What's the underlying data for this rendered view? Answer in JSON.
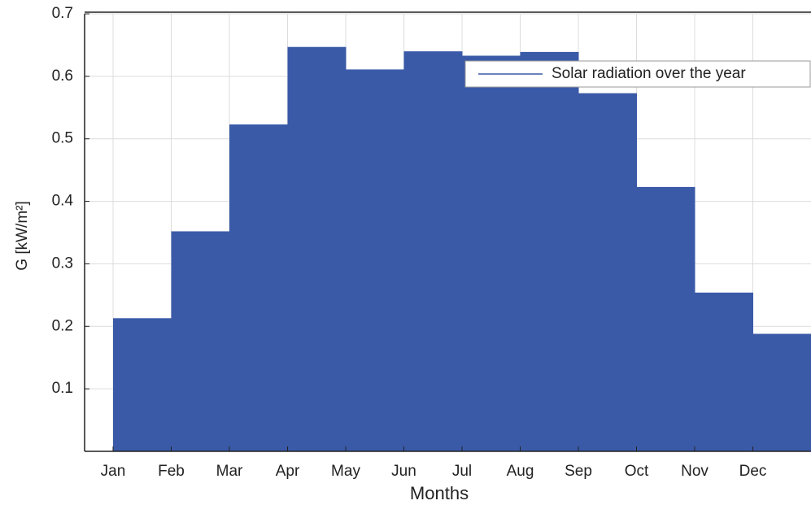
{
  "chart_data": {
    "type": "stairs",
    "y_label": "G [kW/m²]",
    "x_label": "Months",
    "categories": [
      "Jan",
      "Feb",
      "Mar",
      "Apr",
      "May",
      "Jun",
      "Jul",
      "Aug",
      "Sep",
      "Oct",
      "Nov",
      "Dec"
    ],
    "series": [
      {
        "name": "Solar radiation over the year",
        "color": "#3a5aa8",
        "values": [
          0.213,
          0.352,
          0.523,
          0.647,
          0.611,
          0.64,
          0.633,
          0.639,
          0.573,
          0.423,
          0.254,
          0.188
        ]
      }
    ],
    "ylim": [
      0,
      0.7
    ],
    "yticks": [
      0.1,
      0.2,
      0.3,
      0.4,
      0.5,
      0.6,
      0.7
    ],
    "grid": true,
    "legend": "northeast"
  }
}
